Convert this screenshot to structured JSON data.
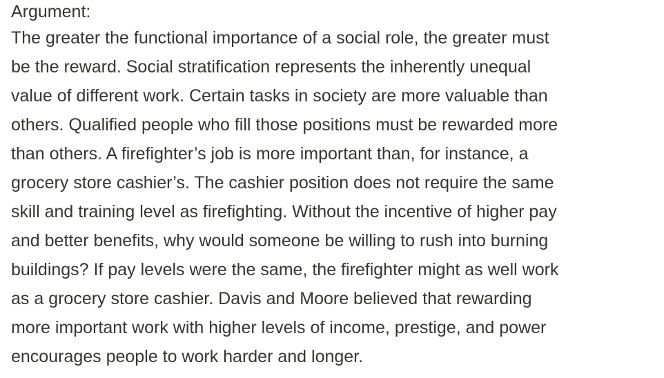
{
  "document": {
    "heading": "Argument:",
    "lines": [
      "The greater the functional importance of a social role, the greater must",
      "be the reward. Social stratification represents the inherently unequal",
      "value of different work. Certain tasks in society are more valuable than",
      "others. Qualified people who fill those positions must be rewarded more",
      "than others. A firefighter’s job is more important than, for instance, a",
      "grocery store cashier’s. The cashier position does not require the same",
      "skill and training level as firefighting. Without the incentive of higher pay",
      "and better benefits, why would someone be willing to rush into burning",
      "buildings? If pay levels were the same, the firefighter might as well work",
      "as a grocery store cashier. Davis and Moore believed that rewarding",
      "more important work with higher levels of income, prestige, and power",
      "encourages people to work harder and longer."
    ]
  }
}
